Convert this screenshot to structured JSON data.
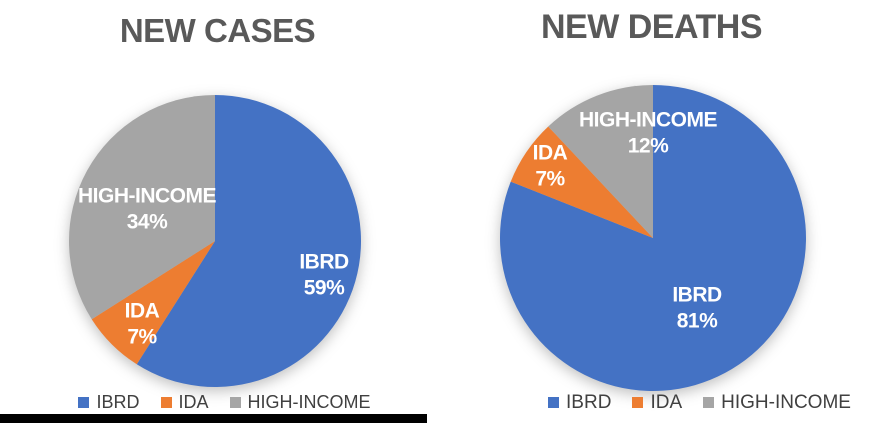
{
  "colors": {
    "ibrd": "#4472C4",
    "ida": "#ED7D31",
    "high_income": "#A5A5A5",
    "title_text": "#595959",
    "legend_text": "#404040",
    "data_label_text": "#FFFFFF",
    "background": "#FFFFFF",
    "redaction_bar": "#000000"
  },
  "chart_data": [
    {
      "type": "pie",
      "title": "NEW CASES",
      "categories": [
        "IBRD",
        "IDA",
        "HIGH-INCOME"
      ],
      "values": [
        59,
        7,
        34
      ],
      "unit": "%",
      "colors": [
        "#4472C4",
        "#ED7D31",
        "#A5A5A5"
      ],
      "data_labels": [
        "IBRD 59%",
        "IDA 7%",
        "HIGH-INCOME 34%"
      ],
      "start_angle_deg": 0,
      "direction": "clockwise",
      "labels_inside": true,
      "legend_position": "bottom",
      "legend_entries": [
        "IBRD",
        "IDA",
        "HIGH-INCOME"
      ]
    },
    {
      "type": "pie",
      "title": "NEW DEATHS",
      "categories": [
        "IBRD",
        "IDA",
        "HIGH-INCOME"
      ],
      "values": [
        81,
        7,
        12
      ],
      "unit": "%",
      "colors": [
        "#4472C4",
        "#ED7D31",
        "#A5A5A5"
      ],
      "data_labels": [
        "IBRD 81%",
        "IDA 7%",
        "HIGH-INCOME 12%"
      ],
      "start_angle_deg": 0,
      "direction": "clockwise",
      "labels_inside": true,
      "legend_position": "bottom",
      "legend_entries": [
        "IBRD",
        "IDA",
        "HIGH-INCOME"
      ]
    }
  ]
}
